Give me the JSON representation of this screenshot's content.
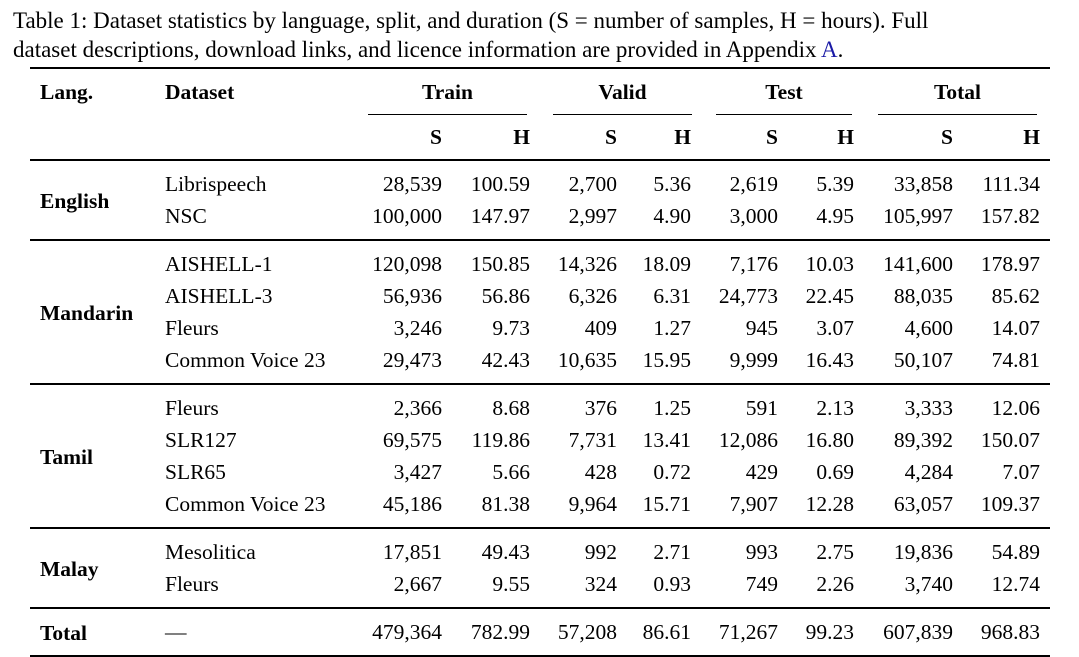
{
  "caption": {
    "line1": "Table 1: Dataset statistics by language, split, and duration (S = number of samples, H = hours). Full",
    "line2_prefix": "dataset descriptions, download links, and licence information are provided in Appendix ",
    "appendix_link": "A",
    "line2_suffix": "."
  },
  "colors": {
    "link": "#1a1aa6"
  },
  "header": {
    "lang": "Lang.",
    "dataset": "Dataset",
    "groups": [
      "Train",
      "Valid",
      "Test",
      "Total"
    ],
    "sub": [
      "S",
      "H",
      "S",
      "H",
      "S",
      "H",
      "S",
      "H"
    ]
  },
  "groups": [
    {
      "lang": "English",
      "rows": [
        {
          "dataset": "Librispeech",
          "values": [
            "28,539",
            "100.59",
            "2,700",
            "5.36",
            "2,619",
            "5.39",
            "33,858",
            "111.34"
          ]
        },
        {
          "dataset": "NSC",
          "values": [
            "100,000",
            "147.97",
            "2,997",
            "4.90",
            "3,000",
            "4.95",
            "105,997",
            "157.82"
          ]
        }
      ]
    },
    {
      "lang": "Mandarin",
      "rows": [
        {
          "dataset": "AISHELL-1",
          "values": [
            "120,098",
            "150.85",
            "14,326",
            "18.09",
            "7,176",
            "10.03",
            "141,600",
            "178.97"
          ]
        },
        {
          "dataset": "AISHELL-3",
          "values": [
            "56,936",
            "56.86",
            "6,326",
            "6.31",
            "24,773",
            "22.45",
            "88,035",
            "85.62"
          ]
        },
        {
          "dataset": "Fleurs",
          "values": [
            "3,246",
            "9.73",
            "409",
            "1.27",
            "945",
            "3.07",
            "4,600",
            "14.07"
          ]
        },
        {
          "dataset": "Common Voice 23",
          "values": [
            "29,473",
            "42.43",
            "10,635",
            "15.95",
            "9,999",
            "16.43",
            "50,107",
            "74.81"
          ]
        }
      ]
    },
    {
      "lang": "Tamil",
      "rows": [
        {
          "dataset": "Fleurs",
          "values": [
            "2,366",
            "8.68",
            "376",
            "1.25",
            "591",
            "2.13",
            "3,333",
            "12.06"
          ]
        },
        {
          "dataset": "SLR127",
          "values": [
            "69,575",
            "119.86",
            "7,731",
            "13.41",
            "12,086",
            "16.80",
            "89,392",
            "150.07"
          ]
        },
        {
          "dataset": "SLR65",
          "values": [
            "3,427",
            "5.66",
            "428",
            "0.72",
            "429",
            "0.69",
            "4,284",
            "7.07"
          ]
        },
        {
          "dataset": "Common Voice 23",
          "values": [
            "45,186",
            "81.38",
            "9,964",
            "15.71",
            "7,907",
            "12.28",
            "63,057",
            "109.37"
          ]
        }
      ]
    },
    {
      "lang": "Malay",
      "rows": [
        {
          "dataset": "Mesolitica",
          "values": [
            "17,851",
            "49.43",
            "992",
            "2.71",
            "993",
            "2.75",
            "19,836",
            "54.89"
          ]
        },
        {
          "dataset": "Fleurs",
          "values": [
            "2,667",
            "9.55",
            "324",
            "0.93",
            "749",
            "2.26",
            "3,740",
            "12.74"
          ]
        }
      ]
    },
    {
      "lang": "Total",
      "rows": [
        {
          "dataset": "—",
          "values": [
            "479,364",
            "782.99",
            "57,208",
            "86.61",
            "71,267",
            "99.23",
            "607,839",
            "968.83"
          ]
        }
      ]
    }
  ]
}
